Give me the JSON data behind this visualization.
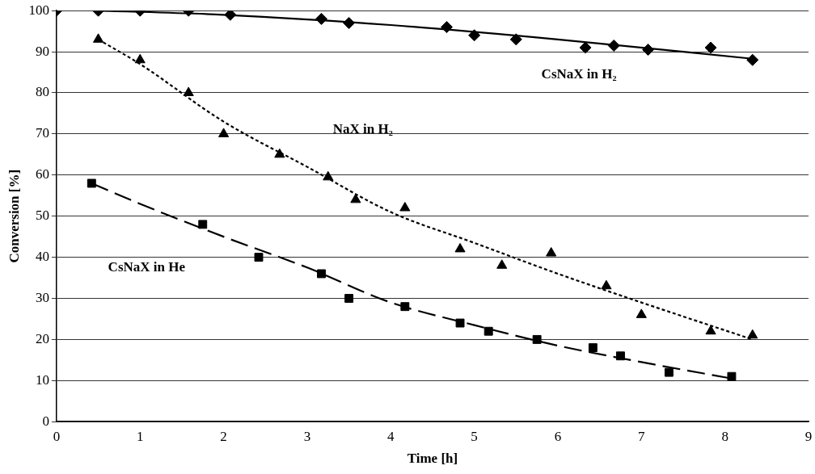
{
  "chart_data": {
    "type": "scatter",
    "xlabel": "Time [h]",
    "ylabel": "Conversion [%]",
    "xlim": [
      0,
      9
    ],
    "xticks": [
      0,
      1,
      2,
      3,
      4,
      5,
      6,
      7,
      8,
      9
    ],
    "ylim": [
      0,
      100
    ],
    "yticks": [
      0,
      10,
      20,
      30,
      40,
      50,
      60,
      70,
      80,
      90,
      100
    ],
    "grid": "y",
    "legend": false,
    "series": [
      {
        "name": "CsNaX in H₂",
        "marker": "diamond",
        "color": "#000000",
        "x": [
          0,
          0.5,
          1,
          1.58,
          2.08,
          3.17,
          3.5,
          4.67,
          5,
          5.5,
          6.33,
          6.67,
          7.08,
          7.83,
          8.33
        ],
        "values": [
          100,
          100,
          100,
          100,
          99,
          98,
          97,
          96,
          94,
          93,
          91,
          91.5,
          90.5,
          91,
          88
        ]
      },
      {
        "name": "NaX in H₂",
        "marker": "triangle",
        "color": "#000000",
        "x": [
          0.5,
          1,
          1.58,
          2,
          2.67,
          3.25,
          3.58,
          4.17,
          4.83,
          5.33,
          5.92,
          6.58,
          7,
          7.83,
          8.33
        ],
        "values": [
          93,
          88,
          80,
          70,
          65,
          59.5,
          54,
          52,
          42,
          38,
          41,
          33,
          26,
          22,
          21
        ]
      },
      {
        "name": "CsNaX in He",
        "marker": "square",
        "color": "#000000",
        "x": [
          0.42,
          1.75,
          2.42,
          3.17,
          3.5,
          4.17,
          4.83,
          5.17,
          5.75,
          6.42,
          6.75,
          7.33,
          8.08
        ],
        "values": [
          58,
          48,
          40,
          36,
          30,
          28,
          24,
          22,
          20,
          18,
          16,
          12,
          11
        ]
      },
      {
        "type": "line",
        "line_style": "solid",
        "color": "#000000",
        "x": [
          0.5,
          2,
          4,
          6,
          8.33
        ],
        "values": [
          100,
          99,
          96.5,
          93,
          88.3
        ]
      },
      {
        "type": "line",
        "line_style": "dotted",
        "color": "#000000",
        "x": [
          0.5,
          1,
          2,
          3,
          4,
          5,
          6,
          7,
          8.33
        ],
        "values": [
          93,
          87,
          73,
          62,
          51,
          43.5,
          36,
          29,
          20
        ]
      },
      {
        "type": "line",
        "line_style": "dashed",
        "color": "#000000",
        "x": [
          0.42,
          1,
          2,
          3,
          4,
          5,
          6,
          7,
          8.08
        ],
        "values": [
          58,
          53,
          45,
          37.5,
          29,
          23.5,
          18.5,
          14.5,
          10.5
        ]
      }
    ]
  }
}
